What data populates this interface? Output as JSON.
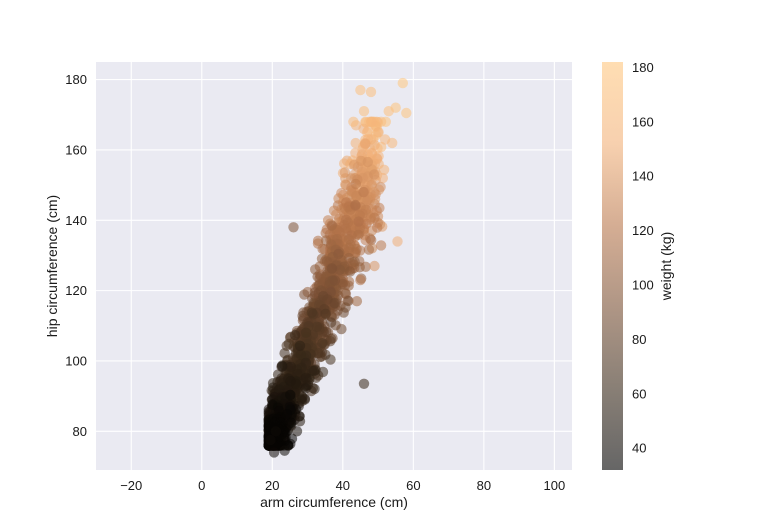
{
  "chart_data": {
    "type": "scatter",
    "title": "",
    "xlabel": "arm circumference (cm)",
    "ylabel": "hip circumference (cm)",
    "xlim": [
      -30,
      105
    ],
    "ylim": [
      69,
      185
    ],
    "xticks": [
      -20,
      0,
      20,
      40,
      60,
      80,
      100
    ],
    "yticks": [
      80,
      100,
      120,
      140,
      160,
      180
    ],
    "grid": true,
    "background": "#eaeaf2",
    "grid_color": "#ffffff",
    "marker_alpha": 0.55,
    "colorbar": {
      "label": "weight (kg)",
      "range": [
        32,
        182
      ],
      "ticks": [
        40,
        60,
        80,
        100,
        120,
        140,
        160,
        180
      ],
      "colormap": "copper",
      "stops": [
        "#000000",
        "#3a2a1a",
        "#7a5034",
        "#b9774c",
        "#f2b179",
        "#ffc77f"
      ]
    },
    "trend": {
      "description_of_cloud": "dense positively correlated cloud",
      "hip_mean_at_arm": [
        [
          20,
          80
        ],
        [
          25,
          90
        ],
        [
          30,
          105
        ],
        [
          35,
          118
        ],
        [
          40,
          132
        ],
        [
          45,
          145
        ],
        [
          50,
          158
        ]
      ],
      "hip_spread": 9,
      "n_cloud_points": 1600
    },
    "points": [
      {
        "x": 57,
        "y": 179,
        "w": 180
      },
      {
        "x": 45,
        "y": 177,
        "w": 172
      },
      {
        "x": 48,
        "y": 176.5,
        "w": 170
      },
      {
        "x": 55,
        "y": 172,
        "w": 175
      },
      {
        "x": 53,
        "y": 171,
        "w": 172
      },
      {
        "x": 58,
        "y": 170.5,
        "w": 176
      },
      {
        "x": 46,
        "y": 171,
        "w": 168
      },
      {
        "x": 43,
        "y": 168,
        "w": 165
      },
      {
        "x": 52,
        "y": 163,
        "w": 160
      },
      {
        "x": 54,
        "y": 162,
        "w": 162
      },
      {
        "x": 26,
        "y": 138,
        "w": 95
      },
      {
        "x": 55.5,
        "y": 134,
        "w": 150
      },
      {
        "x": 49,
        "y": 127,
        "w": 138
      },
      {
        "x": 45,
        "y": 123,
        "w": 120
      },
      {
        "x": 44,
        "y": 117,
        "w": 110
      },
      {
        "x": 46,
        "y": 93.5,
        "w": 60
      },
      {
        "x": 19.5,
        "y": 77.5,
        "w": 40
      },
      {
        "x": 20.5,
        "y": 74,
        "w": 38
      },
      {
        "x": 23.5,
        "y": 74.5,
        "w": 40
      },
      {
        "x": 27,
        "y": 80,
        "w": 45
      },
      {
        "x": 21,
        "y": 80,
        "w": 40
      }
    ]
  }
}
